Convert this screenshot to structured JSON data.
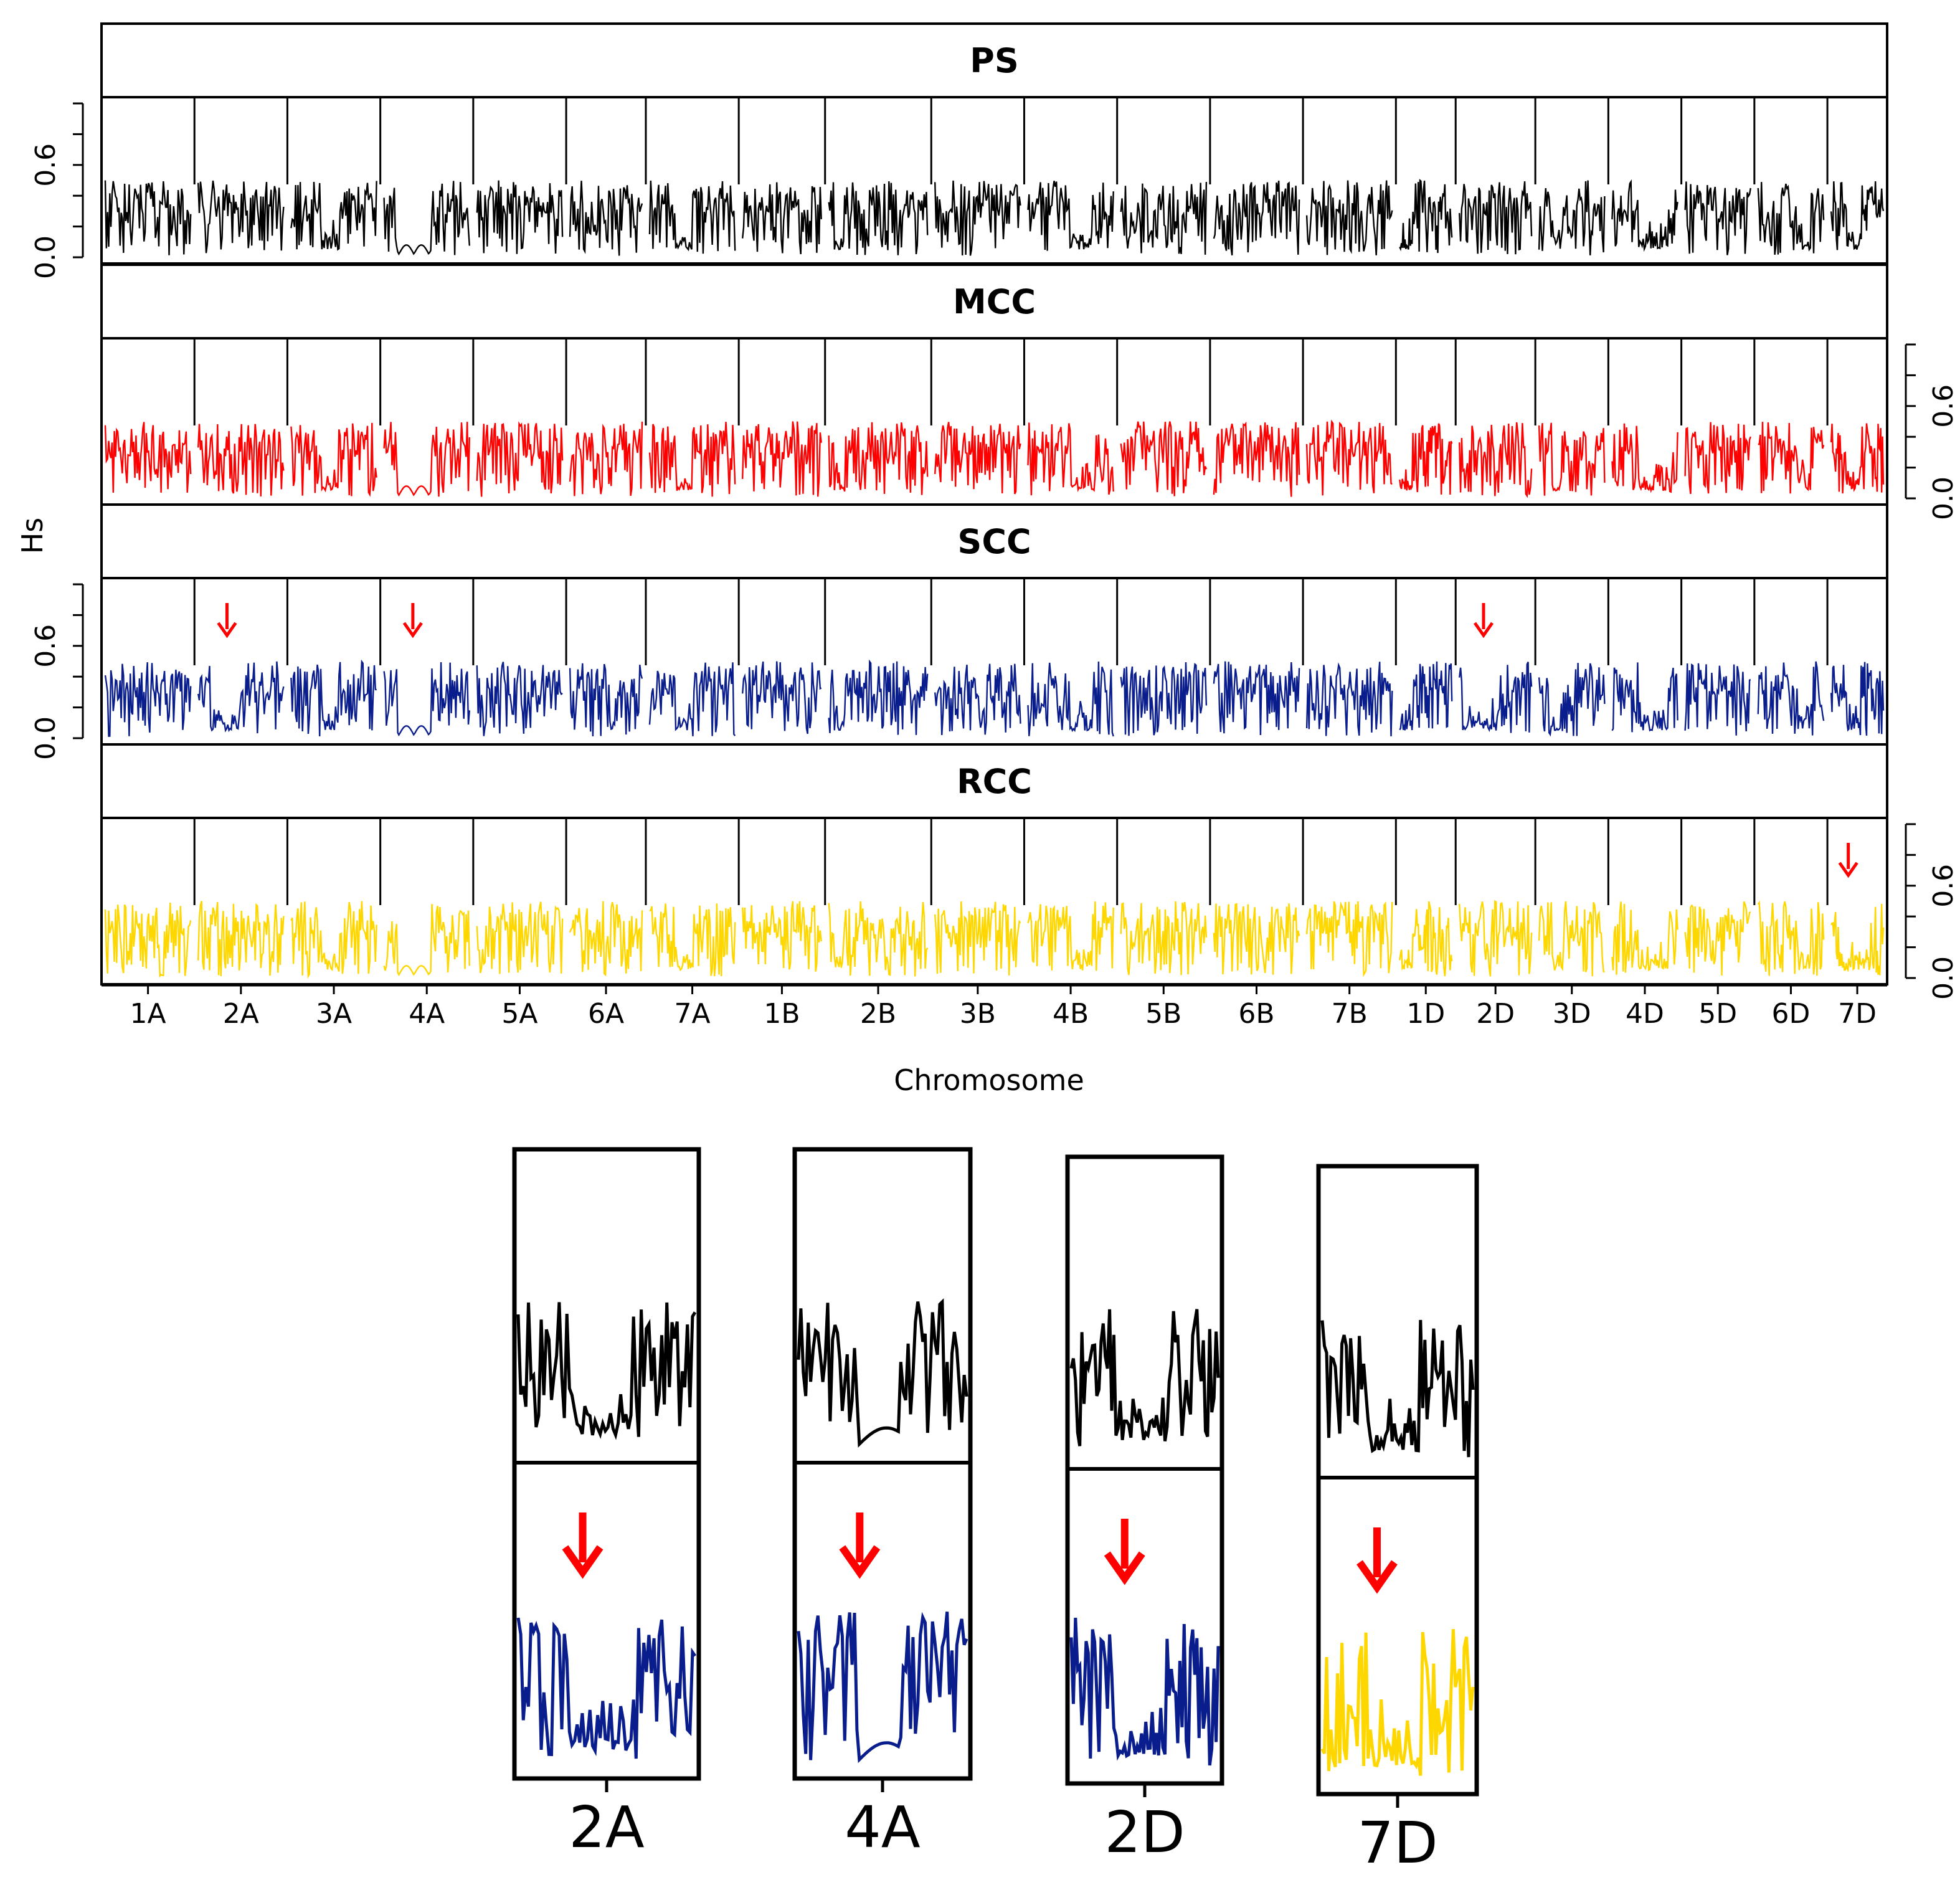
{
  "chart_data": {
    "type": "line",
    "title": "",
    "xlabel": "Chromosome",
    "ylabel": "Hs",
    "ylim": [
      0,
      1.0
    ],
    "yticks": [
      "0.0",
      "0.6"
    ],
    "chromosomes": [
      "1A",
      "2A",
      "3A",
      "4A",
      "5A",
      "6A",
      "7A",
      "1B",
      "2B",
      "3B",
      "4B",
      "5B",
      "6B",
      "7B",
      "1D",
      "2D",
      "3D",
      "4D",
      "5D",
      "6D",
      "7D"
    ],
    "panels": [
      {
        "name": "PS",
        "color": "#000000",
        "max_hs": 0.5,
        "marker_chromosomes": []
      },
      {
        "name": "MCC",
        "color": "#ff0000",
        "max_hs": 0.5,
        "marker_chromosomes": []
      },
      {
        "name": "SCC",
        "color": "#0a1d8c",
        "max_hs": 0.5,
        "marker_chromosomes": [
          "2A",
          "4A",
          "2D"
        ]
      },
      {
        "name": "RCC",
        "color": "#ffd700",
        "max_hs": 0.5,
        "marker_chromosomes": [
          "7D"
        ]
      }
    ],
    "low_diversity_regions": [
      {
        "chromosome": "2A",
        "population": "SCC"
      },
      {
        "chromosome": "4A",
        "population": "SCC"
      },
      {
        "chromosome": "2D",
        "population": "SCC"
      },
      {
        "chromosome": "7D",
        "population": "RCC"
      }
    ],
    "zoom_panels": [
      {
        "label": "2A",
        "top_color": "#000000",
        "bottom_color": "#0a1d8c"
      },
      {
        "label": "4A",
        "top_color": "#000000",
        "bottom_color": "#0a1d8c"
      },
      {
        "label": "2D",
        "top_color": "#000000",
        "bottom_color": "#0a1d8c"
      },
      {
        "label": "7D",
        "top_color": "#000000",
        "bottom_color": "#ffd700"
      }
    ],
    "arrow_color": "#ff0000"
  }
}
